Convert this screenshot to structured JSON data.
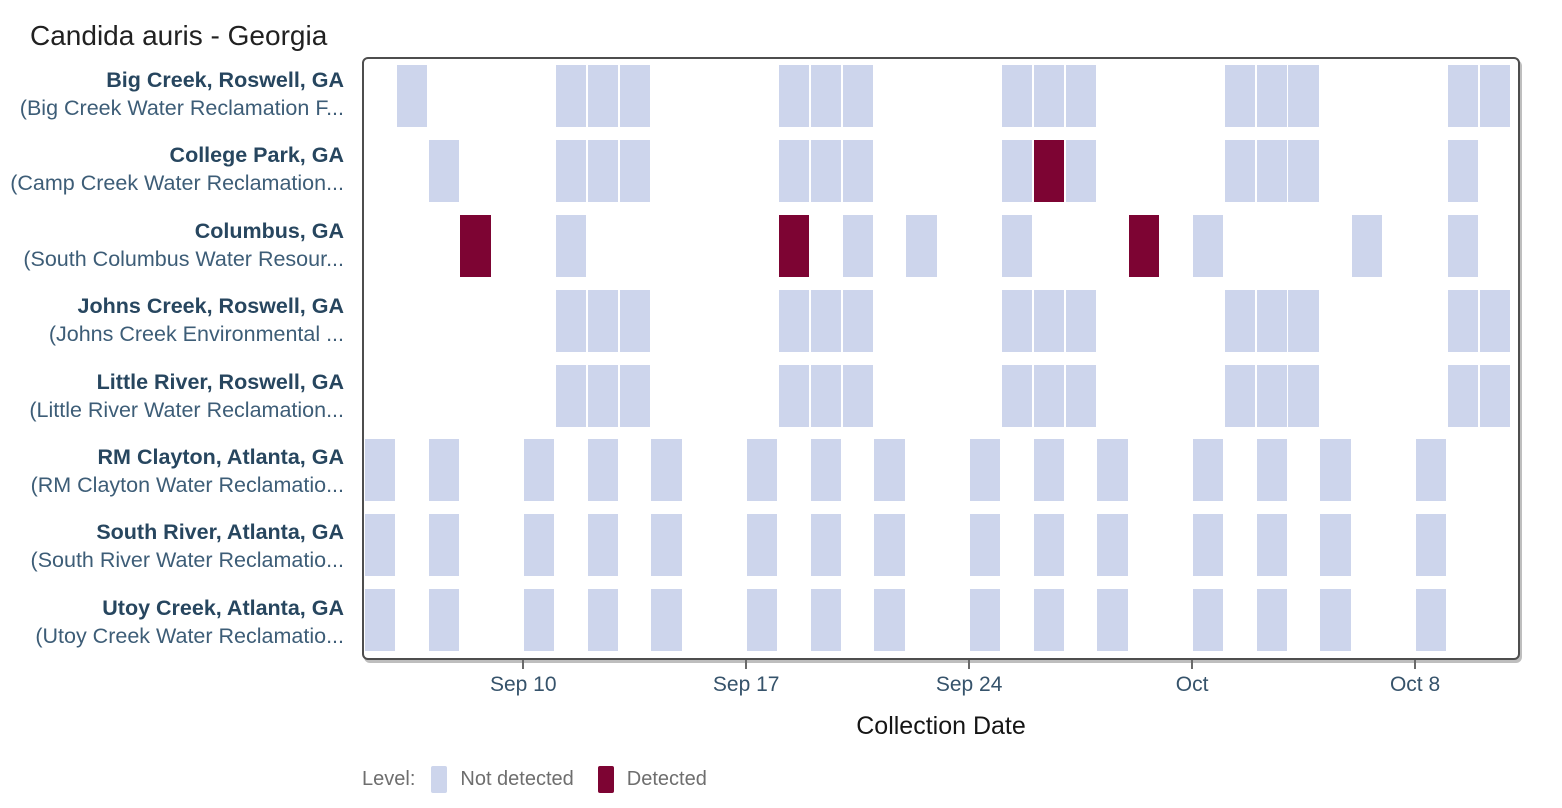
{
  "chart_data": {
    "type": "heatmap",
    "title": "Candida auris - Georgia",
    "xlabel": "Collection Date",
    "x_start": "Sep 5",
    "x_domain_days": 36.3,
    "grid": false,
    "x_ticks": [
      {
        "label": "Sep 10",
        "day": 5
      },
      {
        "label": "Sep 17",
        "day": 12
      },
      {
        "label": "Sep 24",
        "day": 19
      },
      {
        "label": "Oct",
        "day": 26
      },
      {
        "label": "Oct 8",
        "day": 33
      }
    ],
    "legend": {
      "label": "Level:",
      "position": "bottom-left",
      "items": [
        {
          "label": "Not detected",
          "value": "not_detected",
          "color": "#cdd5ec"
        },
        {
          "label": "Detected",
          "value": "detected",
          "color": "#7d0433"
        }
      ]
    },
    "rows": [
      {
        "site": "Big Creek, Roswell, GA",
        "facility": "(Big Creek Water Reclamation F...",
        "samples": [
          {
            "date": "Sep 6",
            "day": 1,
            "detected": false
          },
          {
            "date": "Sep 11",
            "day": 6,
            "detected": false
          },
          {
            "date": "Sep 12",
            "day": 7,
            "detected": false
          },
          {
            "date": "Sep 13",
            "day": 8,
            "detected": false
          },
          {
            "date": "Sep 18",
            "day": 13,
            "detected": false
          },
          {
            "date": "Sep 19",
            "day": 14,
            "detected": false
          },
          {
            "date": "Sep 20",
            "day": 15,
            "detected": false
          },
          {
            "date": "Sep 25",
            "day": 20,
            "detected": false
          },
          {
            "date": "Sep 26",
            "day": 21,
            "detected": false
          },
          {
            "date": "Sep 27",
            "day": 22,
            "detected": false
          },
          {
            "date": "Oct 2",
            "day": 27,
            "detected": false
          },
          {
            "date": "Oct 3",
            "day": 28,
            "detected": false
          },
          {
            "date": "Oct 4",
            "day": 29,
            "detected": false
          },
          {
            "date": "Oct 9",
            "day": 34,
            "detected": false
          },
          {
            "date": "Oct 10",
            "day": 35,
            "detected": false
          }
        ]
      },
      {
        "site": "College Park, GA",
        "facility": "(Camp Creek Water Reclamation...",
        "samples": [
          {
            "date": "Sep 7",
            "day": 2,
            "detected": false
          },
          {
            "date": "Sep 11",
            "day": 6,
            "detected": false
          },
          {
            "date": "Sep 12",
            "day": 7,
            "detected": false
          },
          {
            "date": "Sep 13",
            "day": 8,
            "detected": false
          },
          {
            "date": "Sep 18",
            "day": 13,
            "detected": false
          },
          {
            "date": "Sep 19",
            "day": 14,
            "detected": false
          },
          {
            "date": "Sep 20",
            "day": 15,
            "detected": false
          },
          {
            "date": "Sep 25",
            "day": 20,
            "detected": false
          },
          {
            "date": "Sep 26",
            "day": 21,
            "detected": true
          },
          {
            "date": "Sep 27",
            "day": 22,
            "detected": false
          },
          {
            "date": "Oct 2",
            "day": 27,
            "detected": false
          },
          {
            "date": "Oct 3",
            "day": 28,
            "detected": false
          },
          {
            "date": "Oct 4",
            "day": 29,
            "detected": false
          },
          {
            "date": "Oct 9",
            "day": 34,
            "detected": false
          }
        ]
      },
      {
        "site": "Columbus, GA",
        "facility": "(South Columbus Water Resour...",
        "samples": [
          {
            "date": "Sep 8",
            "day": 3,
            "detected": true
          },
          {
            "date": "Sep 11",
            "day": 6,
            "detected": false
          },
          {
            "date": "Sep 18",
            "day": 13,
            "detected": true
          },
          {
            "date": "Sep 20",
            "day": 15,
            "detected": false
          },
          {
            "date": "Sep 22",
            "day": 17,
            "detected": false
          },
          {
            "date": "Sep 25",
            "day": 20,
            "detected": false
          },
          {
            "date": "Sep 29",
            "day": 24,
            "detected": true
          },
          {
            "date": "Oct 1",
            "day": 26,
            "detected": false
          },
          {
            "date": "Oct 6",
            "day": 31,
            "detected": false
          },
          {
            "date": "Oct 9",
            "day": 34,
            "detected": false
          }
        ]
      },
      {
        "site": "Johns Creek, Roswell, GA",
        "facility": "(Johns Creek Environmental ...",
        "samples": [
          {
            "date": "Sep 11",
            "day": 6,
            "detected": false
          },
          {
            "date": "Sep 12",
            "day": 7,
            "detected": false
          },
          {
            "date": "Sep 13",
            "day": 8,
            "detected": false
          },
          {
            "date": "Sep 18",
            "day": 13,
            "detected": false
          },
          {
            "date": "Sep 19",
            "day": 14,
            "detected": false
          },
          {
            "date": "Sep 20",
            "day": 15,
            "detected": false
          },
          {
            "date": "Sep 25",
            "day": 20,
            "detected": false
          },
          {
            "date": "Sep 26",
            "day": 21,
            "detected": false
          },
          {
            "date": "Sep 27",
            "day": 22,
            "detected": false
          },
          {
            "date": "Oct 2",
            "day": 27,
            "detected": false
          },
          {
            "date": "Oct 3",
            "day": 28,
            "detected": false
          },
          {
            "date": "Oct 4",
            "day": 29,
            "detected": false
          },
          {
            "date": "Oct 9",
            "day": 34,
            "detected": false
          },
          {
            "date": "Oct 10",
            "day": 35,
            "detected": false
          }
        ]
      },
      {
        "site": "Little River, Roswell, GA",
        "facility": "(Little River Water Reclamation...",
        "samples": [
          {
            "date": "Sep 11",
            "day": 6,
            "detected": false
          },
          {
            "date": "Sep 12",
            "day": 7,
            "detected": false
          },
          {
            "date": "Sep 13",
            "day": 8,
            "detected": false
          },
          {
            "date": "Sep 18",
            "day": 13,
            "detected": false
          },
          {
            "date": "Sep 19",
            "day": 14,
            "detected": false
          },
          {
            "date": "Sep 20",
            "day": 15,
            "detected": false
          },
          {
            "date": "Sep 25",
            "day": 20,
            "detected": false
          },
          {
            "date": "Sep 26",
            "day": 21,
            "detected": false
          },
          {
            "date": "Sep 27",
            "day": 22,
            "detected": false
          },
          {
            "date": "Oct 2",
            "day": 27,
            "detected": false
          },
          {
            "date": "Oct 3",
            "day": 28,
            "detected": false
          },
          {
            "date": "Oct 4",
            "day": 29,
            "detected": false
          },
          {
            "date": "Oct 9",
            "day": 34,
            "detected": false
          },
          {
            "date": "Oct 10",
            "day": 35,
            "detected": false
          }
        ]
      },
      {
        "site": "RM Clayton, Atlanta, GA",
        "facility": "(RM Clayton Water Reclamatio...",
        "samples": [
          {
            "date": "Sep 5",
            "day": 0,
            "detected": false
          },
          {
            "date": "Sep 7",
            "day": 2,
            "detected": false
          },
          {
            "date": "Sep 10",
            "day": 5,
            "detected": false
          },
          {
            "date": "Sep 12",
            "day": 7,
            "detected": false
          },
          {
            "date": "Sep 14",
            "day": 9,
            "detected": false
          },
          {
            "date": "Sep 17",
            "day": 12,
            "detected": false
          },
          {
            "date": "Sep 19",
            "day": 14,
            "detected": false
          },
          {
            "date": "Sep 21",
            "day": 16,
            "detected": false
          },
          {
            "date": "Sep 24",
            "day": 19,
            "detected": false
          },
          {
            "date": "Sep 26",
            "day": 21,
            "detected": false
          },
          {
            "date": "Sep 28",
            "day": 23,
            "detected": false
          },
          {
            "date": "Oct 1",
            "day": 26,
            "detected": false
          },
          {
            "date": "Oct 3",
            "day": 28,
            "detected": false
          },
          {
            "date": "Oct 5",
            "day": 30,
            "detected": false
          },
          {
            "date": "Oct 8",
            "day": 33,
            "detected": false
          }
        ]
      },
      {
        "site": "South River, Atlanta, GA",
        "facility": "(South River Water Reclamatio...",
        "samples": [
          {
            "date": "Sep 5",
            "day": 0,
            "detected": false
          },
          {
            "date": "Sep 7",
            "day": 2,
            "detected": false
          },
          {
            "date": "Sep 10",
            "day": 5,
            "detected": false
          },
          {
            "date": "Sep 12",
            "day": 7,
            "detected": false
          },
          {
            "date": "Sep 14",
            "day": 9,
            "detected": false
          },
          {
            "date": "Sep 17",
            "day": 12,
            "detected": false
          },
          {
            "date": "Sep 19",
            "day": 14,
            "detected": false
          },
          {
            "date": "Sep 21",
            "day": 16,
            "detected": false
          },
          {
            "date": "Sep 24",
            "day": 19,
            "detected": false
          },
          {
            "date": "Sep 26",
            "day": 21,
            "detected": false
          },
          {
            "date": "Sep 28",
            "day": 23,
            "detected": false
          },
          {
            "date": "Oct 1",
            "day": 26,
            "detected": false
          },
          {
            "date": "Oct 3",
            "day": 28,
            "detected": false
          },
          {
            "date": "Oct 5",
            "day": 30,
            "detected": false
          },
          {
            "date": "Oct 8",
            "day": 33,
            "detected": false
          }
        ]
      },
      {
        "site": "Utoy Creek, Atlanta, GA",
        "facility": "(Utoy Creek Water Reclamatio...",
        "samples": [
          {
            "date": "Sep 5",
            "day": 0,
            "detected": false
          },
          {
            "date": "Sep 7",
            "day": 2,
            "detected": false
          },
          {
            "date": "Sep 10",
            "day": 5,
            "detected": false
          },
          {
            "date": "Sep 12",
            "day": 7,
            "detected": false
          },
          {
            "date": "Sep 14",
            "day": 9,
            "detected": false
          },
          {
            "date": "Sep 17",
            "day": 12,
            "detected": false
          },
          {
            "date": "Sep 19",
            "day": 14,
            "detected": false
          },
          {
            "date": "Sep 21",
            "day": 16,
            "detected": false
          },
          {
            "date": "Sep 24",
            "day": 19,
            "detected": false
          },
          {
            "date": "Sep 26",
            "day": 21,
            "detected": false
          },
          {
            "date": "Sep 28",
            "day": 23,
            "detected": false
          },
          {
            "date": "Oct 1",
            "day": 26,
            "detected": false
          },
          {
            "date": "Oct 3",
            "day": 28,
            "detected": false
          },
          {
            "date": "Oct 5",
            "day": 30,
            "detected": false
          },
          {
            "date": "Oct 8",
            "day": 33,
            "detected": false
          }
        ]
      }
    ]
  },
  "colors": {
    "not_detected": "#cdd5ec",
    "detected": "#7d0433",
    "plot_border": "#4e4e4e",
    "site_label": "#27465f",
    "facility_label": "#3d5d77",
    "tick_label": "#36536b",
    "legend_text": "#6e6e6e"
  }
}
